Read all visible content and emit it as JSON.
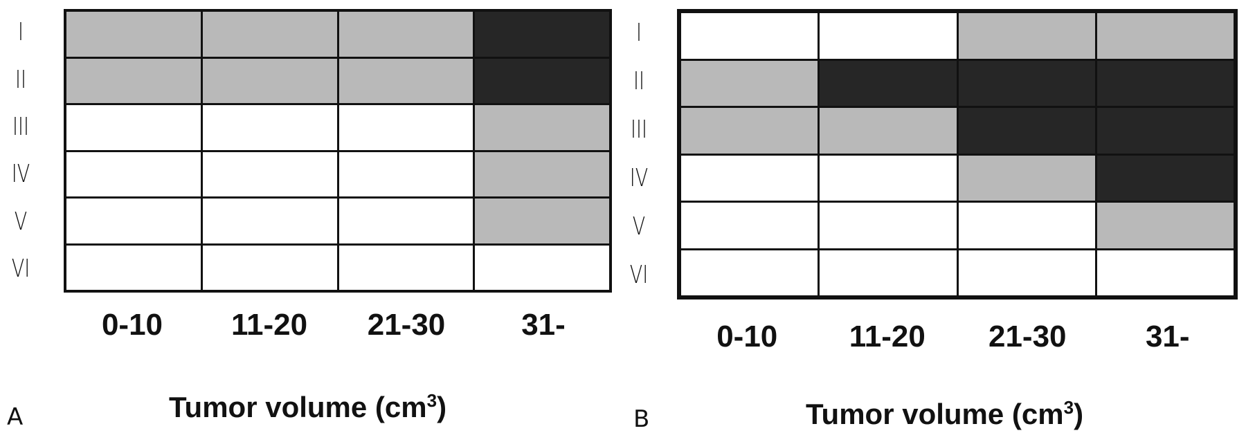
{
  "chart_data": [
    {
      "type": "heatmap",
      "panel_label": "A",
      "row_labels": [
        "I",
        "II",
        "III",
        "IV",
        "V",
        "VI"
      ],
      "categories": [
        "0-10",
        "11-20",
        "21-30",
        "31-"
      ],
      "xlabel_main": "Tumor volume (cm",
      "xlabel_sup": "3",
      "xlabel_close": ")",
      "levels": [
        [
          1,
          1,
          1,
          2
        ],
        [
          1,
          1,
          1,
          2
        ],
        [
          0,
          0,
          0,
          1
        ],
        [
          0,
          0,
          0,
          1
        ],
        [
          0,
          0,
          0,
          1
        ],
        [
          0,
          0,
          0,
          0
        ]
      ]
    },
    {
      "type": "heatmap",
      "panel_label": "B",
      "row_labels": [
        "I",
        "II",
        "III",
        "IV",
        "V",
        "VI"
      ],
      "categories": [
        "0-10",
        "11-20",
        "21-30",
        "31-"
      ],
      "xlabel_main": "Tumor volume (cm",
      "xlabel_sup": "3",
      "xlabel_close": ")",
      "levels": [
        [
          0,
          0,
          1,
          1
        ],
        [
          1,
          2,
          2,
          2
        ],
        [
          1,
          1,
          2,
          2
        ],
        [
          0,
          0,
          1,
          2
        ],
        [
          0,
          0,
          0,
          1
        ],
        [
          0,
          0,
          0,
          0
        ]
      ]
    }
  ],
  "colors": {
    "level_0": "#ffffff",
    "level_1": "#b9b9b9",
    "level_2": "#262626",
    "grid_line": "#111111"
  }
}
